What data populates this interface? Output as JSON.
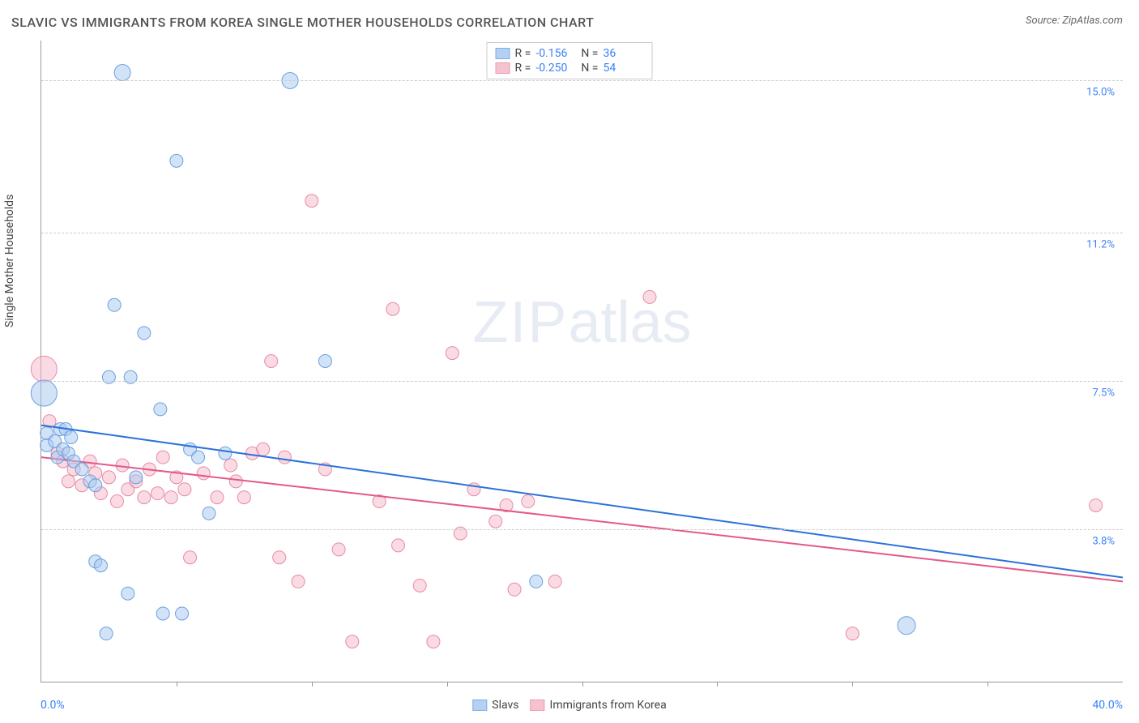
{
  "title": "SLAVIC VS IMMIGRANTS FROM KOREA SINGLE MOTHER HOUSEHOLDS CORRELATION CHART",
  "source": "Source: ZipAtlas.com",
  "watermark": {
    "part1": "ZIP",
    "part2": "atlas"
  },
  "chart": {
    "type": "scatter",
    "background_color": "#ffffff",
    "grid_color": "#cccccc",
    "axis_color": "#999999",
    "xlabel_min": "0.0%",
    "xlabel_max": "40.0%",
    "xlabel_color": "#3b82f6",
    "ylabel": "Single Mother Households",
    "ylabel_color": "#444444",
    "xlim": [
      0,
      40
    ],
    "ylim": [
      0,
      16
    ],
    "xticks": [
      5,
      10,
      15,
      20,
      25,
      30,
      35
    ],
    "ygrid": [
      {
        "value": 3.8,
        "label": "3.8%"
      },
      {
        "value": 7.5,
        "label": "7.5%"
      },
      {
        "value": 11.2,
        "label": "11.2%"
      },
      {
        "value": 15.0,
        "label": "15.0%"
      }
    ],
    "ytick_label_color": "#3b82f6",
    "ytick_label_fontsize": 13
  },
  "series": {
    "slavs": {
      "label": "Slavs",
      "fill": "#a8c8f0",
      "stroke": "#6aa0e0",
      "fill_opacity": 0.5,
      "line_color": "#2b72d9",
      "line_width": 2,
      "default_radius": 8,
      "stats": {
        "R": "-0.156",
        "N": "36"
      },
      "trend": {
        "x1": 0,
        "y1": 6.4,
        "x2": 40,
        "y2": 2.6
      },
      "points": [
        {
          "x": 0.1,
          "y": 7.2,
          "r": 16
        },
        {
          "x": 0.2,
          "y": 6.2
        },
        {
          "x": 0.2,
          "y": 5.9
        },
        {
          "x": 0.5,
          "y": 6.0
        },
        {
          "x": 0.6,
          "y": 5.6
        },
        {
          "x": 0.7,
          "y": 6.3
        },
        {
          "x": 0.8,
          "y": 5.8
        },
        {
          "x": 0.9,
          "y": 6.3
        },
        {
          "x": 1.0,
          "y": 5.7
        },
        {
          "x": 1.1,
          "y": 6.1
        },
        {
          "x": 1.2,
          "y": 5.5
        },
        {
          "x": 1.5,
          "y": 5.3
        },
        {
          "x": 1.8,
          "y": 5.0
        },
        {
          "x": 2.0,
          "y": 4.9
        },
        {
          "x": 2.0,
          "y": 3.0
        },
        {
          "x": 2.2,
          "y": 2.9
        },
        {
          "x": 2.4,
          "y": 1.2
        },
        {
          "x": 2.5,
          "y": 7.6
        },
        {
          "x": 2.7,
          "y": 9.4
        },
        {
          "x": 3.0,
          "y": 15.2,
          "r": 10
        },
        {
          "x": 3.2,
          "y": 2.2
        },
        {
          "x": 3.3,
          "y": 7.6
        },
        {
          "x": 3.5,
          "y": 5.1
        },
        {
          "x": 3.8,
          "y": 8.7
        },
        {
          "x": 4.4,
          "y": 6.8
        },
        {
          "x": 4.5,
          "y": 1.7
        },
        {
          "x": 5.0,
          "y": 13.0
        },
        {
          "x": 5.2,
          "y": 1.7
        },
        {
          "x": 5.5,
          "y": 5.8
        },
        {
          "x": 5.8,
          "y": 5.6
        },
        {
          "x": 6.2,
          "y": 4.2
        },
        {
          "x": 6.8,
          "y": 5.7
        },
        {
          "x": 9.2,
          "y": 15.0,
          "r": 10
        },
        {
          "x": 10.5,
          "y": 8.0
        },
        {
          "x": 18.3,
          "y": 2.5
        },
        {
          "x": 32.0,
          "y": 1.4,
          "r": 11
        }
      ]
    },
    "korea": {
      "label": "Immigrants from Korea",
      "fill": "#f5b8c8",
      "stroke": "#e88aa5",
      "fill_opacity": 0.5,
      "line_color": "#e35a87",
      "line_width": 2,
      "default_radius": 8,
      "stats": {
        "R": "-0.250",
        "N": "54"
      },
      "trend": {
        "x1": 0,
        "y1": 5.6,
        "x2": 40,
        "y2": 2.5
      },
      "points": [
        {
          "x": 0.1,
          "y": 7.8,
          "r": 16
        },
        {
          "x": 0.3,
          "y": 6.5
        },
        {
          "x": 0.6,
          "y": 5.7
        },
        {
          "x": 0.8,
          "y": 5.5
        },
        {
          "x": 1.0,
          "y": 5.0
        },
        {
          "x": 1.2,
          "y": 5.3
        },
        {
          "x": 1.5,
          "y": 4.9
        },
        {
          "x": 1.8,
          "y": 5.5
        },
        {
          "x": 2.0,
          "y": 5.2
        },
        {
          "x": 2.2,
          "y": 4.7
        },
        {
          "x": 2.5,
          "y": 5.1
        },
        {
          "x": 2.8,
          "y": 4.5
        },
        {
          "x": 3.0,
          "y": 5.4
        },
        {
          "x": 3.2,
          "y": 4.8
        },
        {
          "x": 3.5,
          "y": 5.0
        },
        {
          "x": 3.8,
          "y": 4.6
        },
        {
          "x": 4.0,
          "y": 5.3
        },
        {
          "x": 4.3,
          "y": 4.7
        },
        {
          "x": 4.5,
          "y": 5.6
        },
        {
          "x": 4.8,
          "y": 4.6
        },
        {
          "x": 5.0,
          "y": 5.1
        },
        {
          "x": 5.3,
          "y": 4.8
        },
        {
          "x": 5.5,
          "y": 3.1
        },
        {
          "x": 6.0,
          "y": 5.2
        },
        {
          "x": 6.5,
          "y": 4.6
        },
        {
          "x": 7.0,
          "y": 5.4
        },
        {
          "x": 7.5,
          "y": 4.6
        },
        {
          "x": 7.8,
          "y": 5.7
        },
        {
          "x": 8.2,
          "y": 5.8
        },
        {
          "x": 8.5,
          "y": 8.0
        },
        {
          "x": 8.8,
          "y": 3.1
        },
        {
          "x": 9.0,
          "y": 5.6
        },
        {
          "x": 9.5,
          "y": 2.5
        },
        {
          "x": 10.0,
          "y": 12.0
        },
        {
          "x": 10.5,
          "y": 5.3
        },
        {
          "x": 11.0,
          "y": 3.3
        },
        {
          "x": 11.5,
          "y": 1.0
        },
        {
          "x": 12.5,
          "y": 4.5
        },
        {
          "x": 13.0,
          "y": 9.3
        },
        {
          "x": 13.2,
          "y": 3.4
        },
        {
          "x": 14.0,
          "y": 2.4
        },
        {
          "x": 14.5,
          "y": 1.0
        },
        {
          "x": 15.2,
          "y": 8.2
        },
        {
          "x": 15.5,
          "y": 3.7
        },
        {
          "x": 16.0,
          "y": 4.8
        },
        {
          "x": 16.8,
          "y": 4.0
        },
        {
          "x": 17.2,
          "y": 4.4
        },
        {
          "x": 17.5,
          "y": 2.3
        },
        {
          "x": 18.0,
          "y": 4.5
        },
        {
          "x": 19.0,
          "y": 2.5
        },
        {
          "x": 22.5,
          "y": 9.6
        },
        {
          "x": 30.0,
          "y": 1.2
        },
        {
          "x": 39.0,
          "y": 4.4
        },
        {
          "x": 7.2,
          "y": 5.0
        }
      ]
    }
  },
  "legend_stats": {
    "r_label": "R =",
    "n_label": "N ="
  }
}
